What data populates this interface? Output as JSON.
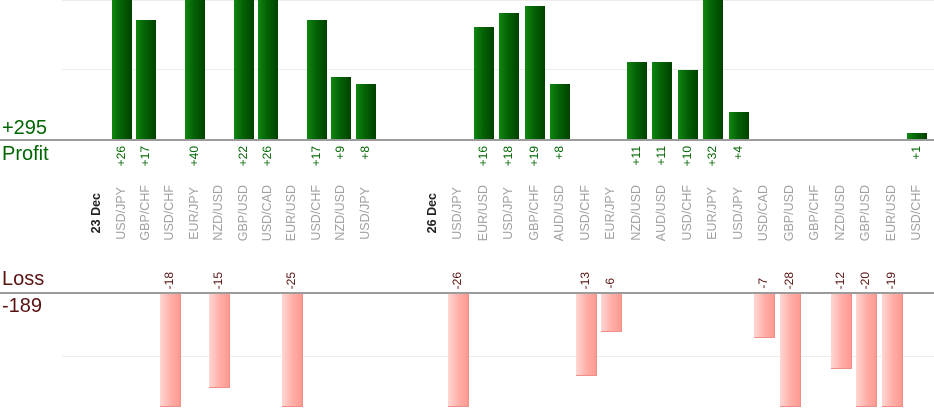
{
  "captions": {
    "profit_total": "+295",
    "profit_label": "Profit",
    "loss_label": "Loss",
    "loss_total": "-189"
  },
  "colors": {
    "profit_text": "#006600",
    "loss_text": "#5a1212",
    "pair_label_text": "#a0a0a0",
    "date_label_text": "#222222",
    "axis_line": "#9b9b9b",
    "gridline": "#ececec",
    "profit_bar_green_light": "#0f870f",
    "profit_bar_green_dark": "#004200",
    "loss_bar_pink_light": "#ffd7d3",
    "loss_bar_pink_dark": "#ff9a92"
  },
  "chart_data": {
    "type": "bar",
    "totals": {
      "profit": 295,
      "loss": -189
    },
    "groups": [
      {
        "date": "23 Dec",
        "trades": [
          {
            "pair": "USD/JPY",
            "value": 26
          },
          {
            "pair": "GBP/CHF",
            "value": 17
          },
          {
            "pair": "USD/CHF",
            "value": -18
          },
          {
            "pair": "EUR/JPY",
            "value": 40
          },
          {
            "pair": "NZD/USD",
            "value": -15
          },
          {
            "pair": "GBP/USD",
            "value": 22
          },
          {
            "pair": "USD/CAD",
            "value": 26
          },
          {
            "pair": "EUR/USD",
            "value": -25
          },
          {
            "pair": "USD/CHF",
            "value": 17
          },
          {
            "pair": "NZD/USD",
            "value": 9
          },
          {
            "pair": "USD/JPY",
            "value": 8
          }
        ]
      },
      {
        "date": "26 Dec",
        "trades": [
          {
            "pair": "USD/JPY",
            "value": -26
          },
          {
            "pair": "EUR/USD",
            "value": 16
          },
          {
            "pair": "USD/JPY",
            "value": 18
          },
          {
            "pair": "GBP/CHF",
            "value": 19
          },
          {
            "pair": "AUD/USD",
            "value": 8
          },
          {
            "pair": "USD/CHF",
            "value": -13
          },
          {
            "pair": "EUR/JPY",
            "value": -6
          },
          {
            "pair": "NZD/USD",
            "value": 11
          },
          {
            "pair": "AUD/USD",
            "value": 11
          },
          {
            "pair": "USD/CHF",
            "value": 10
          },
          {
            "pair": "EUR/JPY",
            "value": 32
          },
          {
            "pair": "USD/JPY",
            "value": 4
          },
          {
            "pair": "USD/CAD",
            "value": -7
          },
          {
            "pair": "GBP/USD",
            "value": -28
          },
          {
            "pair": "GBP/CHF",
            "value": 0
          },
          {
            "pair": "NZD/USD",
            "value": -12
          },
          {
            "pair": "GBP/USD",
            "value": -20
          },
          {
            "pair": "EUR/USD",
            "value": -19
          },
          {
            "pair": "USD/CHF",
            "value": 1
          }
        ]
      }
    ],
    "panes": {
      "profit": {
        "side": "top",
        "visible_range": [
          0,
          20
        ],
        "gridline_values": [
          10,
          20
        ],
        "bars_clipped_above": 20
      },
      "loss": {
        "side": "bottom",
        "visible_range": [
          0,
          -18
        ],
        "gridline_values": [
          10
        ],
        "bars_clipped_below": -18
      }
    },
    "grid": true,
    "legend": false
  }
}
